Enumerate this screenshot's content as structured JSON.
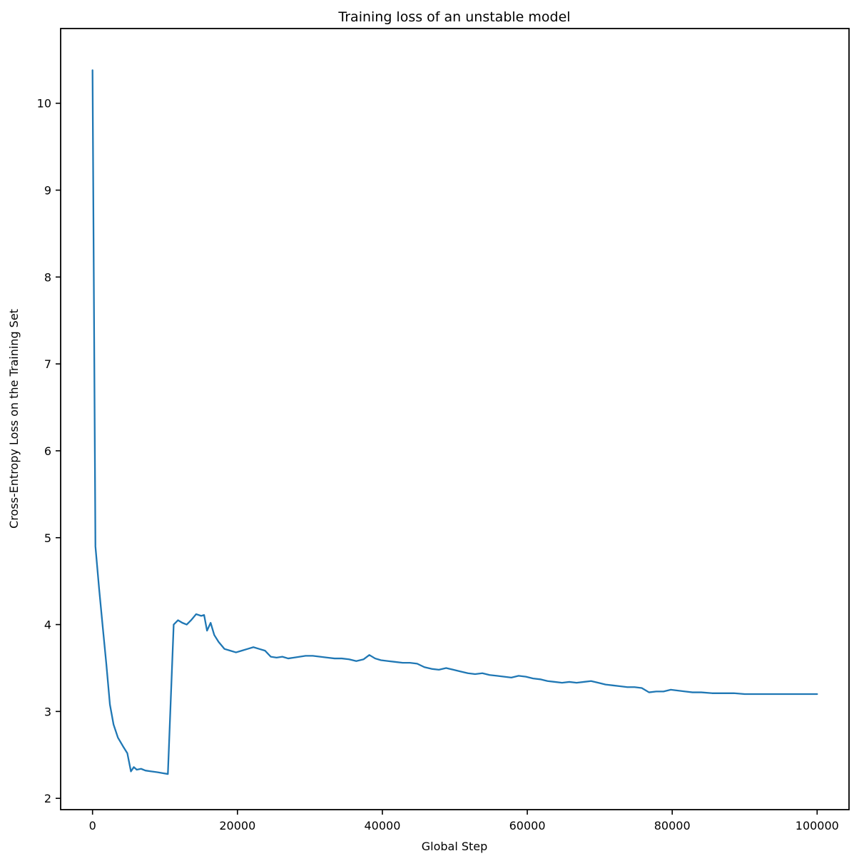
{
  "chart_data": {
    "type": "line",
    "title": "Training loss of an unstable model",
    "xlabel": "Global Step",
    "ylabel": "Cross-Entropy Loss on the Training Set",
    "xlim": [
      -4400,
      104400
    ],
    "ylim": [
      1.87,
      10.86
    ],
    "x_ticks": [
      0,
      20000,
      40000,
      60000,
      80000,
      100000
    ],
    "y_ticks": [
      2,
      3,
      4,
      5,
      6,
      7,
      8,
      9,
      10
    ],
    "grid": false,
    "legend": "none",
    "line_color": "#1f77b4",
    "spine_color": "#000000",
    "series": [
      {
        "name": "training-loss",
        "x": [
          0,
          400,
          900,
          1400,
          1900,
          2400,
          2900,
          3500,
          4200,
          4800,
          5300,
          5700,
          6100,
          6700,
          7300,
          8100,
          9000,
          9700,
          10400,
          11200,
          11800,
          12400,
          13000,
          13600,
          14300,
          15000,
          15400,
          15800,
          16300,
          16800,
          17400,
          18200,
          19000,
          19800,
          20600,
          21400,
          22200,
          23000,
          23800,
          24600,
          25400,
          26200,
          27000,
          27800,
          28600,
          29400,
          30400,
          31400,
          32400,
          33400,
          34400,
          35400,
          36400,
          37400,
          38200,
          39000,
          39800,
          40800,
          41800,
          42800,
          43800,
          44800,
          45800,
          46800,
          47800,
          48800,
          49800,
          50800,
          51800,
          52800,
          53800,
          54800,
          55800,
          56800,
          57800,
          58800,
          59800,
          60800,
          61800,
          62800,
          63800,
          64800,
          65800,
          66800,
          67800,
          68800,
          69800,
          70800,
          71800,
          72800,
          73800,
          74800,
          75800,
          76800,
          77800,
          78800,
          79800,
          80800,
          81800,
          82800,
          84000,
          85500,
          87000,
          88500,
          90000,
          92000,
          94000,
          96000,
          98000,
          100000
        ],
        "y": [
          10.38,
          4.9,
          4.42,
          3.98,
          3.55,
          3.08,
          2.85,
          2.7,
          2.6,
          2.52,
          2.31,
          2.36,
          2.33,
          2.34,
          2.32,
          2.31,
          2.3,
          2.29,
          2.28,
          4.0,
          4.05,
          4.02,
          4.0,
          4.05,
          4.12,
          4.1,
          4.11,
          3.93,
          4.02,
          3.88,
          3.8,
          3.72,
          3.7,
          3.68,
          3.7,
          3.72,
          3.74,
          3.72,
          3.7,
          3.63,
          3.62,
          3.63,
          3.61,
          3.62,
          3.63,
          3.64,
          3.64,
          3.63,
          3.62,
          3.61,
          3.61,
          3.6,
          3.58,
          3.6,
          3.65,
          3.61,
          3.59,
          3.58,
          3.57,
          3.56,
          3.56,
          3.55,
          3.51,
          3.49,
          3.48,
          3.5,
          3.48,
          3.46,
          3.44,
          3.43,
          3.44,
          3.42,
          3.41,
          3.4,
          3.39,
          3.41,
          3.4,
          3.38,
          3.37,
          3.35,
          3.34,
          3.33,
          3.34,
          3.33,
          3.34,
          3.35,
          3.33,
          3.31,
          3.3,
          3.29,
          3.28,
          3.28,
          3.27,
          3.22,
          3.23,
          3.23,
          3.25,
          3.24,
          3.23,
          3.22,
          3.22,
          3.21,
          3.21,
          3.21,
          3.2,
          3.2,
          3.2,
          3.2,
          3.2,
          3.2
        ]
      }
    ]
  }
}
